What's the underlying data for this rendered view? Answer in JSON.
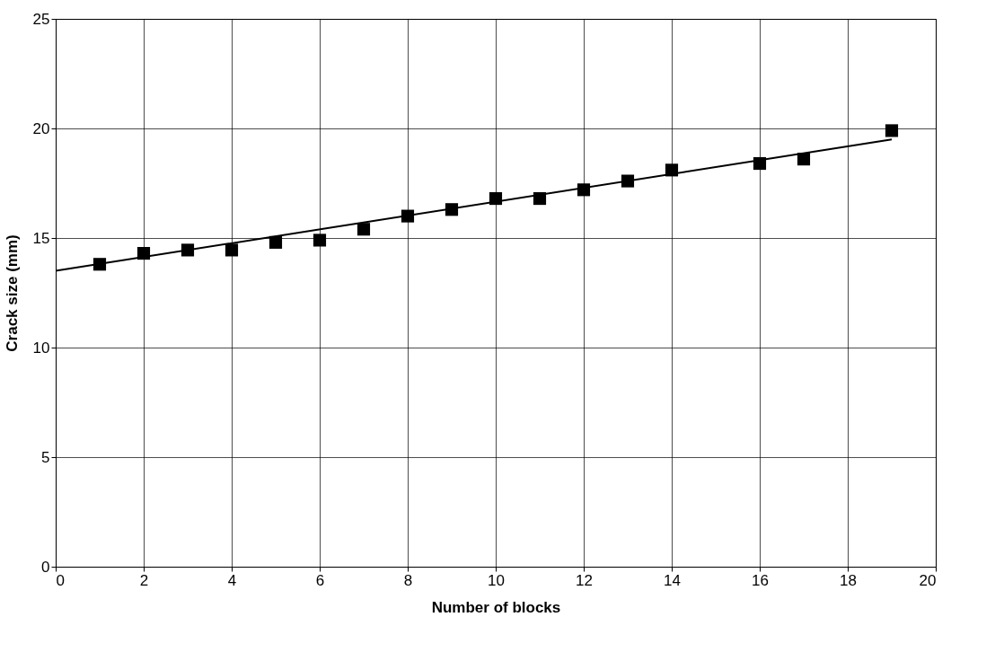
{
  "chart_data": {
    "type": "scatter",
    "xlabel": "Number of blocks",
    "ylabel": "Crack size (mm)",
    "xlim": [
      0,
      20
    ],
    "ylim": [
      0,
      25
    ],
    "xticks": [
      0,
      2,
      4,
      6,
      8,
      10,
      12,
      14,
      16,
      18,
      20
    ],
    "yticks": [
      0,
      5,
      10,
      15,
      20,
      25
    ],
    "grid": true,
    "marker": "square",
    "series": [
      {
        "color": "#000000",
        "x": [
          1,
          2,
          3,
          4,
          5,
          6,
          7,
          8,
          9,
          10,
          11,
          12,
          13,
          14,
          16,
          17,
          19
        ],
        "values": [
          13.8,
          14.3,
          14.45,
          14.45,
          14.8,
          14.9,
          15.4,
          16.0,
          16.3,
          16.8,
          16.8,
          17.2,
          17.6,
          18.1,
          18.4,
          18.6,
          19.9
        ]
      },
      {
        "type": "line",
        "color": "#000000",
        "x": [
          0,
          19
        ],
        "values": [
          13.5,
          19.5
        ],
        "marker": "none"
      }
    ]
  }
}
